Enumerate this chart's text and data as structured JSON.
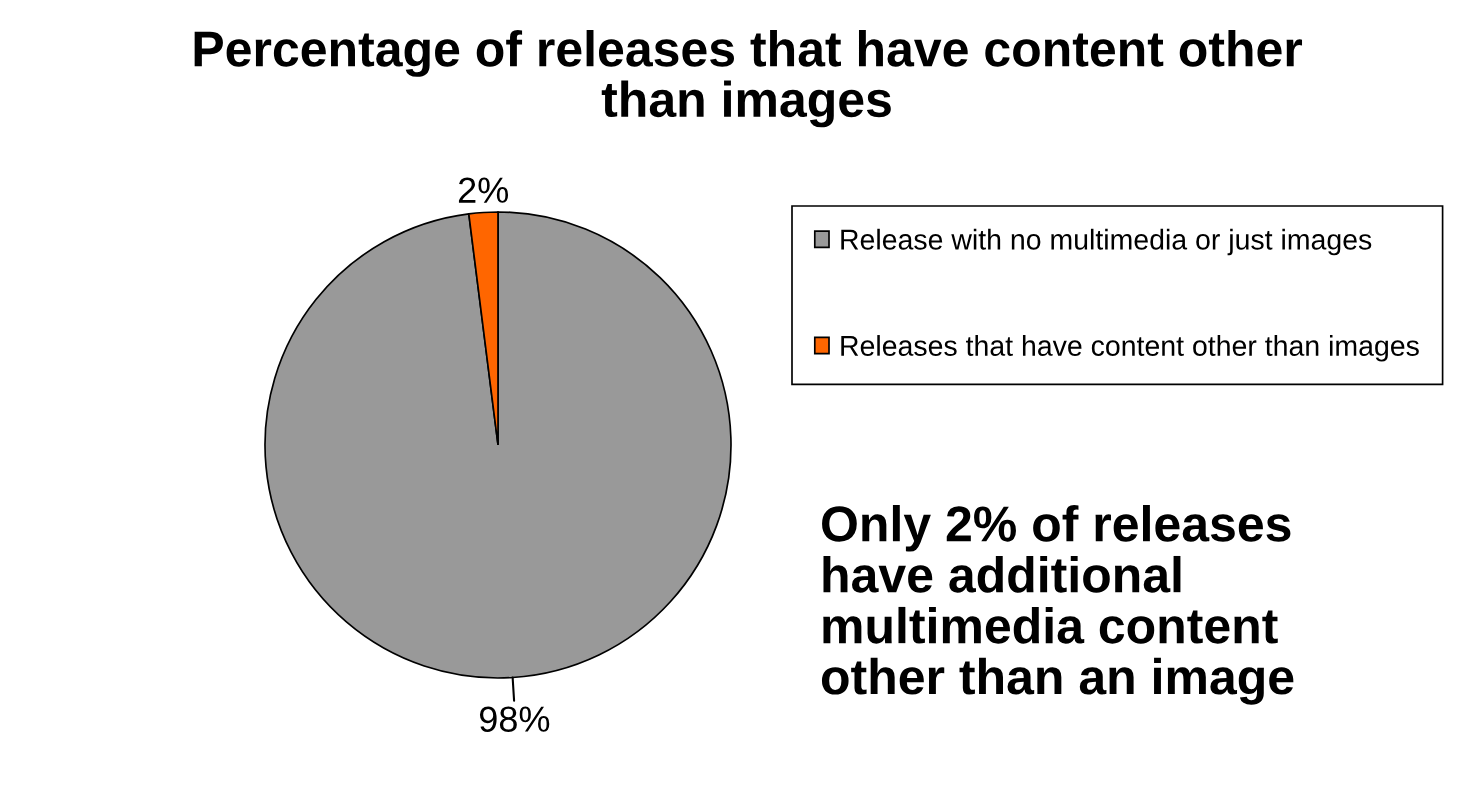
{
  "chart_data": {
    "type": "pie",
    "title": "Percentage of releases that have content other\nthan images",
    "categories": [
      "Release with no multimedia or just images",
      "Releases that have content other than images"
    ],
    "values": [
      98,
      2
    ],
    "colors": [
      "#999999",
      "#ff6600"
    ],
    "value_labels": [
      "98%",
      "2%"
    ],
    "legend": "right",
    "annotations": [
      "Only 2% of releases\nhave additional\nmultimedia content\nother than an image"
    ]
  }
}
